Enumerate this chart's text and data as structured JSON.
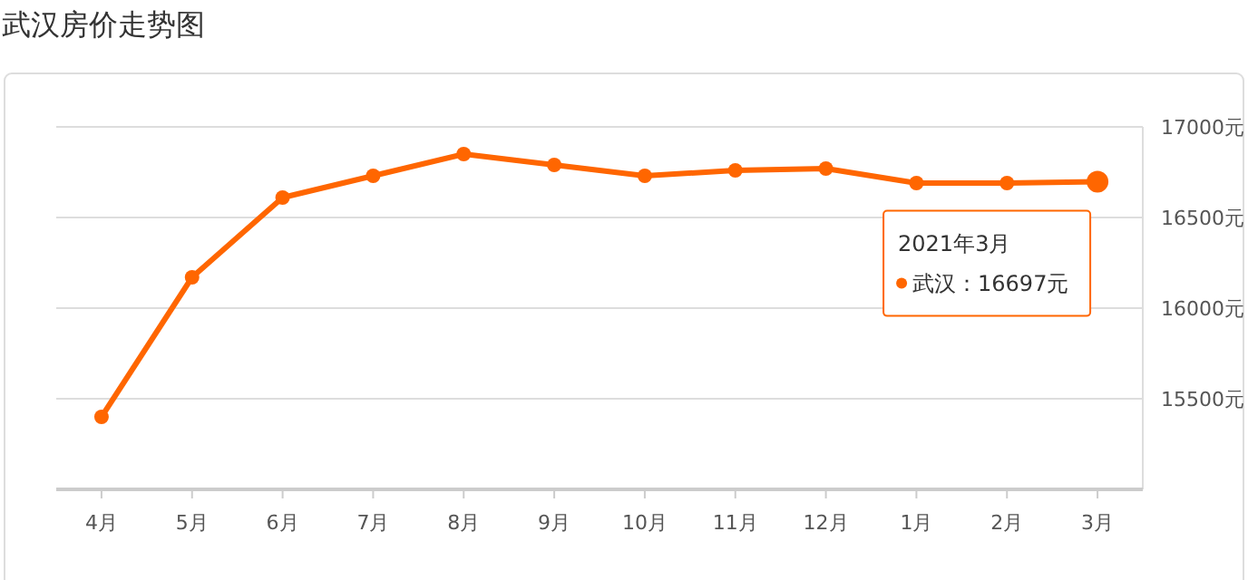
{
  "chart_data": {
    "type": "line",
    "title": "武汉房价走势图",
    "categories": [
      "4月",
      "5月",
      "6月",
      "7月",
      "8月",
      "9月",
      "10月",
      "11月",
      "12月",
      "1月",
      "2月",
      "3月"
    ],
    "series": [
      {
        "color": "#ff6600",
        "values": [
          15400,
          16170,
          16610,
          16730,
          16850,
          16790,
          16730,
          16760,
          16770,
          16690,
          16690,
          16697
        ]
      }
    ],
    "ylim": [
      15000,
      17000
    ],
    "yticks": [
      {
        "value": 15500,
        "label": "15500元"
      },
      {
        "value": 16000,
        "label": "16000元"
      },
      {
        "value": 16500,
        "label": "16500元"
      },
      {
        "value": 17000,
        "label": "17000元"
      }
    ],
    "grid": "y",
    "marker": "circle",
    "line_style": "solid",
    "annotations": [
      "2021年3月",
      "武汉：16697元"
    ]
  }
}
